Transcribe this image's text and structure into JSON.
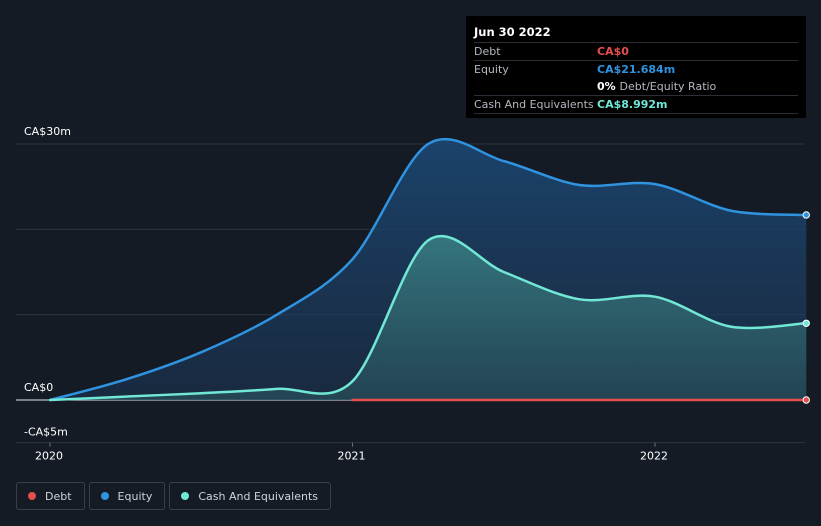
{
  "tooltip": {
    "date": "Jun 30 2022",
    "rows": [
      {
        "label": "Debt",
        "value": "CA$0",
        "color": "#e64e4e"
      },
      {
        "label": "Equity",
        "value": "CA$21.684m",
        "color": "#2f93e0"
      },
      {
        "label": "",
        "value": "0%",
        "suffix": "Debt/Equity Ratio",
        "color": "#ffffff"
      },
      {
        "label": "Cash And Equivalents",
        "value": "CA$8.992m",
        "color": "#71e7d6"
      }
    ]
  },
  "legend": [
    {
      "label": "Debt",
      "color": "#e64e4e"
    },
    {
      "label": "Equity",
      "color": "#2f93e0"
    },
    {
      "label": "Cash And Equivalents",
      "color": "#71e7d6"
    }
  ],
  "chart_data": {
    "type": "area",
    "title": "",
    "xlabel": "",
    "ylabel": "",
    "xlim": [
      2020.0,
      2022.5
    ],
    "ylim": [
      -5,
      30
    ],
    "y_tick_labels": [
      "CA$30m",
      "CA$0",
      "-CA$5m"
    ],
    "x_ticks": [
      2020,
      2021,
      2022
    ],
    "x_tick_labels": [
      "2020",
      "2021",
      "2022"
    ],
    "gridlines": [
      0,
      10,
      20,
      30
    ],
    "series": [
      {
        "name": "Equity",
        "color": "#2f93e0",
        "points": [
          [
            2020.0,
            0.0
          ],
          [
            2020.25,
            2.4
          ],
          [
            2020.5,
            5.6
          ],
          [
            2020.75,
            10.0
          ],
          [
            2021.0,
            16.5
          ],
          [
            2021.25,
            30.0
          ],
          [
            2021.5,
            28.0
          ],
          [
            2021.75,
            25.2
          ],
          [
            2022.0,
            25.3
          ],
          [
            2022.25,
            22.2
          ],
          [
            2022.5,
            21.684
          ]
        ]
      },
      {
        "name": "Cash And Equivalents",
        "color": "#71e7d6",
        "points": [
          [
            2020.0,
            0.0
          ],
          [
            2020.25,
            0.4
          ],
          [
            2020.5,
            0.8
          ],
          [
            2020.75,
            1.3
          ],
          [
            2021.0,
            2.2
          ],
          [
            2021.25,
            18.7
          ],
          [
            2021.5,
            15.0
          ],
          [
            2021.75,
            11.8
          ],
          [
            2022.0,
            12.1
          ],
          [
            2022.25,
            8.6
          ],
          [
            2022.5,
            8.992
          ]
        ]
      },
      {
        "name": "Debt",
        "color": "#e64e4e",
        "points": [
          [
            2021.0,
            0.0
          ],
          [
            2022.5,
            0.0
          ]
        ]
      }
    ]
  }
}
